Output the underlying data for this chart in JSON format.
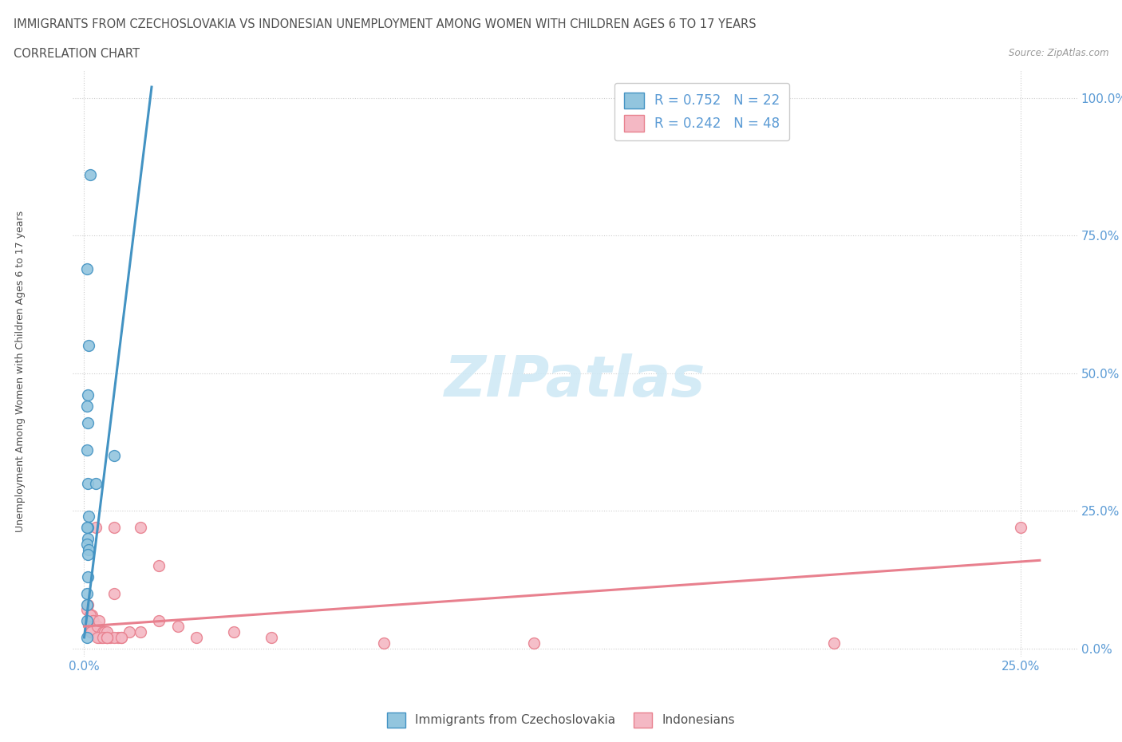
{
  "title1": "IMMIGRANTS FROM CZECHOSLOVAKIA VS INDONESIAN UNEMPLOYMENT AMONG WOMEN WITH CHILDREN AGES 6 TO 17 YEARS",
  "title2": "CORRELATION CHART",
  "source": "Source: ZipAtlas.com",
  "xlabel_ticks": [
    "0.0%",
    "25.0%"
  ],
  "ylabel_ticks": [
    "0.0%",
    "25.0%",
    "50.0%",
    "75.0%",
    "100.0%"
  ],
  "xlim": [
    -0.003,
    0.265
  ],
  "ylim": [
    -0.015,
    1.05
  ],
  "legend_r1": "R = 0.752   N = 22",
  "legend_r2": "R = 0.242   N = 48",
  "color_blue": "#92c5de",
  "color_pink": "#f4b8c4",
  "line_blue": "#4393c3",
  "line_pink": "#e8808e",
  "blue_scatter_x": [
    0.0015,
    0.0008,
    0.0012,
    0.001,
    0.0008,
    0.001,
    0.0008,
    0.001,
    0.0012,
    0.001,
    0.0008,
    0.003,
    0.001,
    0.0008,
    0.0012,
    0.001,
    0.008,
    0.001,
    0.0008,
    0.0008,
    0.0008,
    0.0008
  ],
  "blue_scatter_y": [
    0.86,
    0.69,
    0.55,
    0.46,
    0.44,
    0.41,
    0.36,
    0.3,
    0.24,
    0.22,
    0.22,
    0.3,
    0.2,
    0.19,
    0.18,
    0.17,
    0.35,
    0.13,
    0.1,
    0.08,
    0.05,
    0.02
  ],
  "pink_scatter_x": [
    0.0008,
    0.0012,
    0.002,
    0.003,
    0.001,
    0.0015,
    0.0025,
    0.002,
    0.0018,
    0.0022,
    0.0015,
    0.003,
    0.0025,
    0.002,
    0.0018,
    0.003,
    0.0035,
    0.004,
    0.0045,
    0.005,
    0.006,
    0.004,
    0.0055,
    0.0035,
    0.007,
    0.006,
    0.008,
    0.009,
    0.01,
    0.012,
    0.005,
    0.015,
    0.008,
    0.006,
    0.02,
    0.015,
    0.01,
    0.008,
    0.006,
    0.03,
    0.02,
    0.025,
    0.04,
    0.05,
    0.08,
    0.12,
    0.2,
    0.25
  ],
  "pink_scatter_y": [
    0.07,
    0.05,
    0.06,
    0.04,
    0.08,
    0.06,
    0.05,
    0.04,
    0.03,
    0.05,
    0.04,
    0.03,
    0.04,
    0.03,
    0.03,
    0.22,
    0.04,
    0.05,
    0.02,
    0.03,
    0.02,
    0.02,
    0.03,
    0.02,
    0.02,
    0.03,
    0.22,
    0.02,
    0.02,
    0.03,
    0.02,
    0.22,
    0.02,
    0.02,
    0.15,
    0.03,
    0.02,
    0.1,
    0.02,
    0.02,
    0.05,
    0.04,
    0.03,
    0.02,
    0.01,
    0.01,
    0.01,
    0.22
  ],
  "blue_trend_x": [
    0.0,
    0.018
  ],
  "blue_trend_y": [
    0.02,
    1.02
  ],
  "pink_trend_x": [
    0.0,
    0.255
  ],
  "pink_trend_y": [
    0.04,
    0.16
  ],
  "grid_color": "#c8c8c8",
  "title_color": "#505050",
  "axis_color": "#5B9BD5",
  "background_color": "#ffffff",
  "watermark_color": "#cde8f5",
  "watermark_text": "ZIPatlas"
}
